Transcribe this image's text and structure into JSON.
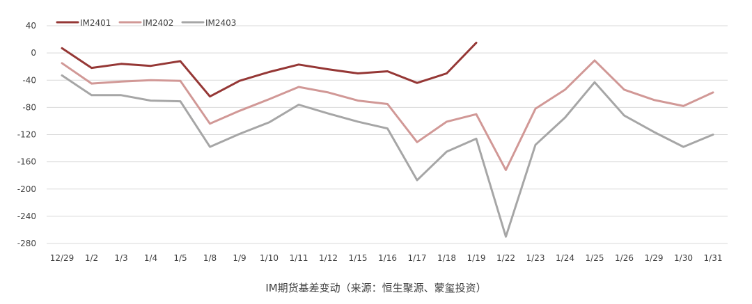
{
  "chart_data": {
    "type": "line",
    "title": "",
    "caption": "IM期货基差变动（来源：恒生聚源、蒙玺投资）",
    "xlabel": "",
    "ylabel": "",
    "categories": [
      "12/29",
      "1/2",
      "1/3",
      "1/4",
      "1/5",
      "1/8",
      "1/9",
      "1/10",
      "1/11",
      "1/12",
      "1/15",
      "1/16",
      "1/17",
      "1/18",
      "1/19",
      "1/22",
      "1/23",
      "1/24",
      "1/25",
      "1/26",
      "1/29",
      "1/30",
      "1/31"
    ],
    "yticks": [
      40,
      0,
      -40,
      -80,
      -120,
      -160,
      -200,
      -240,
      -280
    ],
    "ylim": [
      -280,
      40
    ],
    "grid": true,
    "legend_position": "top-left",
    "series": [
      {
        "name": "IM2401",
        "color": "#953735",
        "values": [
          7,
          -22,
          -16,
          -19,
          -12,
          -64,
          -41,
          -28,
          -17,
          -24,
          -30,
          -27,
          -44,
          -30,
          15,
          null,
          null,
          null,
          null,
          null,
          null,
          null,
          null
        ]
      },
      {
        "name": "IM2402",
        "color": "#D19896",
        "values": [
          -15,
          -45,
          -42,
          -40,
          -41,
          -104,
          -85,
          -68,
          -50,
          -58,
          -70,
          -75,
          -131,
          -101,
          -90,
          -172,
          -82,
          -54,
          -11,
          -54,
          -69,
          -78,
          -58
        ]
      },
      {
        "name": "IM2403",
        "color": "#A6A6A6",
        "values": [
          -33,
          -62,
          -62,
          -70,
          -71,
          -138,
          -119,
          -102,
          -76,
          -89,
          -101,
          -111,
          -187,
          -145,
          -126,
          -270,
          -135,
          -95,
          -43,
          -92,
          -116,
          -138,
          -120
        ]
      }
    ]
  }
}
